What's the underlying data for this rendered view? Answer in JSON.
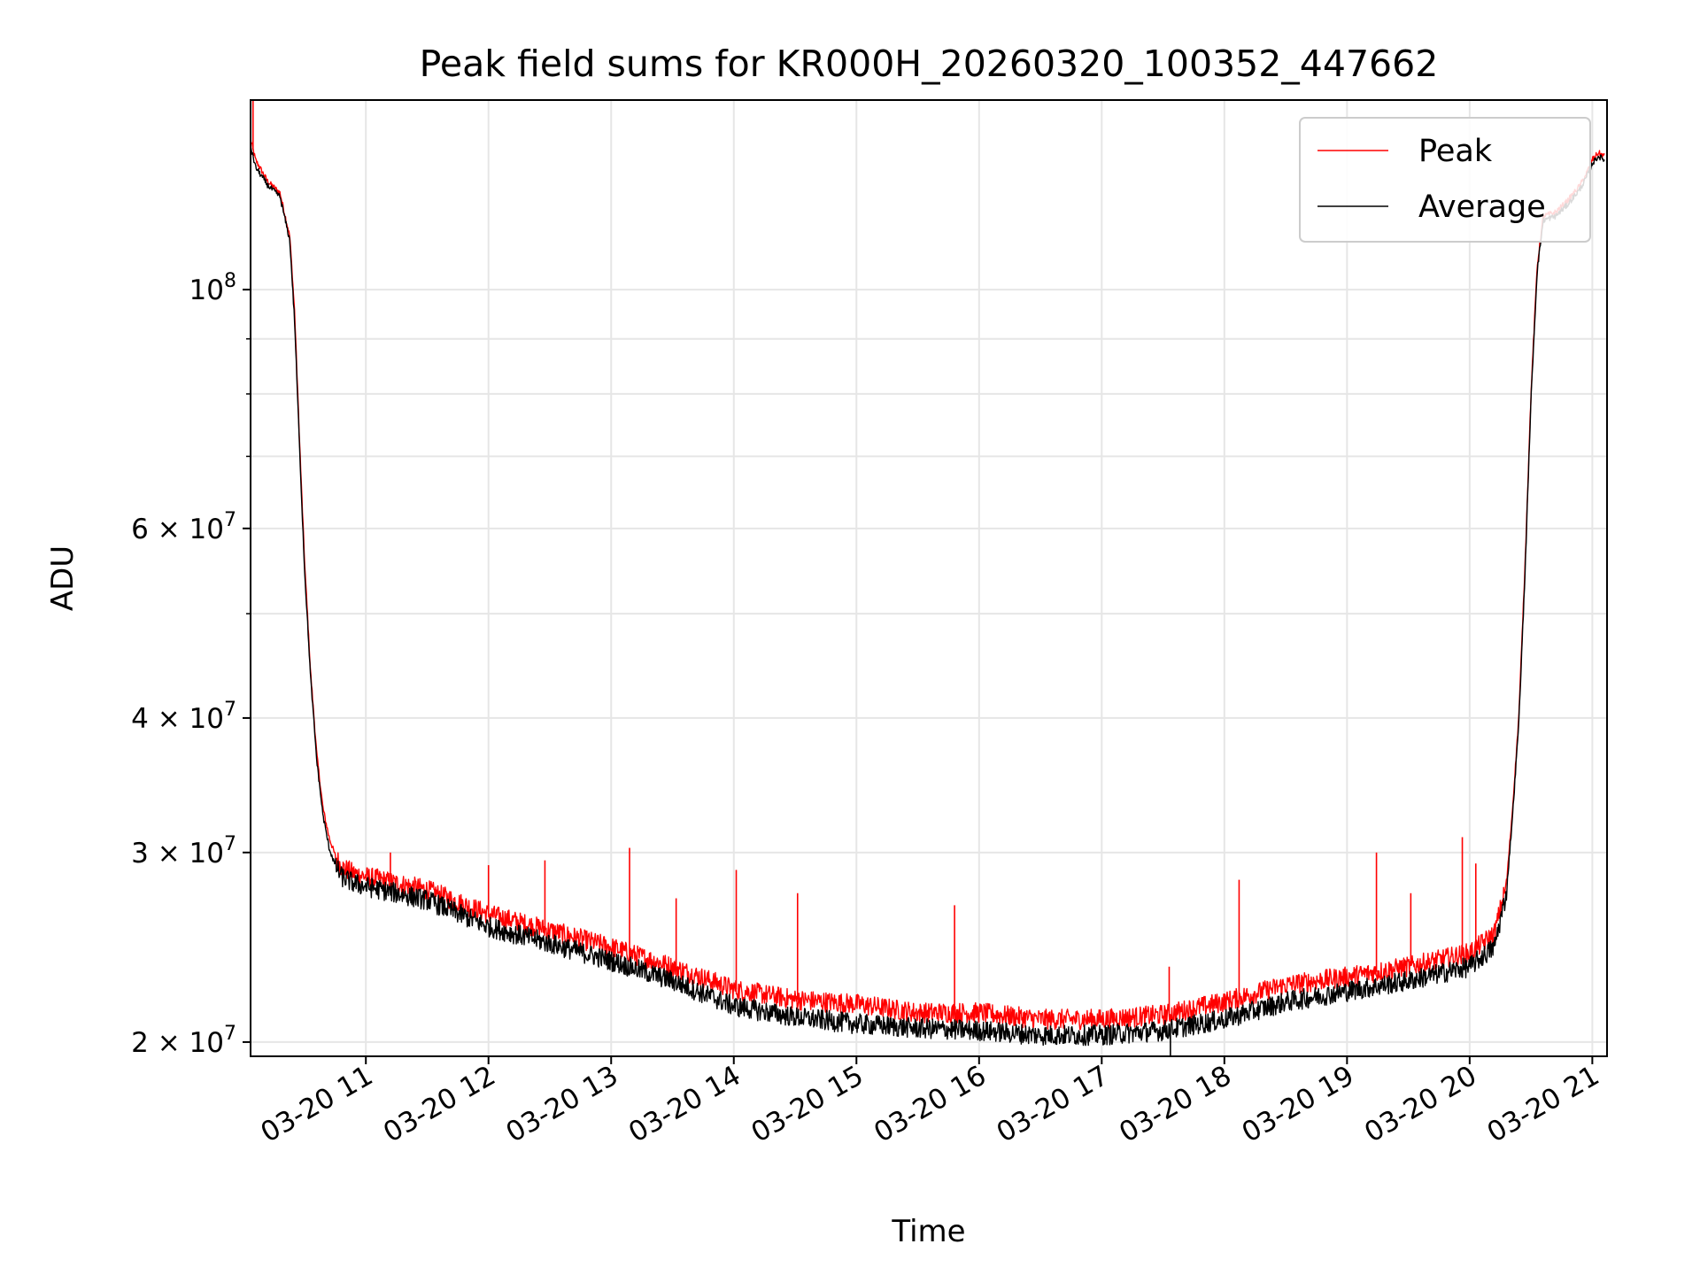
{
  "chart_data": {
    "type": "line",
    "title": "Peak field sums for KR000H_20260320_100352_447662",
    "xlabel": "Time",
    "ylabel": "ADU",
    "yscale": "log",
    "ylim": [
      19400000,
      150000000
    ],
    "xlim": [
      10.06,
      21.12
    ],
    "grid": true,
    "legend_position": "top-right",
    "x_ticks": [
      {
        "value": 11,
        "label": "03-20 11"
      },
      {
        "value": 12,
        "label": "03-20 12"
      },
      {
        "value": 13,
        "label": "03-20 13"
      },
      {
        "value": 14,
        "label": "03-20 14"
      },
      {
        "value": 15,
        "label": "03-20 15"
      },
      {
        "value": 16,
        "label": "03-20 16"
      },
      {
        "value": 17,
        "label": "03-20 17"
      },
      {
        "value": 18,
        "label": "03-20 18"
      },
      {
        "value": 19,
        "label": "03-20 19"
      },
      {
        "value": 20,
        "label": "03-20 20"
      },
      {
        "value": 21,
        "label": "03-20 21"
      }
    ],
    "y_ticks": [
      {
        "value": 20000000,
        "mantissa": "2",
        "exponent": "7"
      },
      {
        "value": 30000000,
        "mantissa": "3",
        "exponent": "7"
      },
      {
        "value": 40000000,
        "mantissa": "4",
        "exponent": "7"
      },
      {
        "value": 60000000,
        "mantissa": "6",
        "exponent": "7"
      },
      {
        "value": 100000000,
        "mantissa": "",
        "exponent": "8"
      }
    ],
    "y_minor_ticks": [
      50000000,
      70000000,
      80000000,
      90000000
    ],
    "series": [
      {
        "name": "Peak",
        "color": "#ff0000",
        "x": [
          10.06,
          10.1,
          10.2,
          10.3,
          10.38,
          10.42,
          10.46,
          10.5,
          10.55,
          10.6,
          10.65,
          10.7,
          10.75,
          10.8,
          10.9,
          11.0,
          11.5,
          12.0,
          12.5,
          13.0,
          13.5,
          14.0,
          14.5,
          15.0,
          15.5,
          16.0,
          16.5,
          17.0,
          17.5,
          18.0,
          18.5,
          19.0,
          19.5,
          20.0,
          20.2,
          20.3,
          20.35,
          20.4,
          20.45,
          20.5,
          20.55,
          20.6,
          20.7,
          20.8,
          20.9,
          20.95,
          21.0,
          21.05,
          21.1
        ],
        "values": [
          138000000,
          132000000,
          126000000,
          123000000,
          112000000,
          95000000,
          72000000,
          56000000,
          44000000,
          37000000,
          33000000,
          31000000,
          29800000,
          29100000,
          28700000,
          28500000,
          27700000,
          26300000,
          25400000,
          24500000,
          23500000,
          22400000,
          21900000,
          21700000,
          21300000,
          21300000,
          21000000,
          21000000,
          21200000,
          21800000,
          22600000,
          23000000,
          23500000,
          24200000,
          25200000,
          28000000,
          33000000,
          40000000,
          55000000,
          80000000,
          105000000,
          117000000,
          118000000,
          121000000,
          125000000,
          128000000,
          132000000,
          134000000,
          133000000
        ],
        "spikes": [
          {
            "x": 10.08,
            "value": 150000000
          },
          {
            "x": 11.2,
            "value": 30000000
          },
          {
            "x": 12.0,
            "value": 29200000
          },
          {
            "x": 12.46,
            "value": 29500000
          },
          {
            "x": 13.15,
            "value": 30300000
          },
          {
            "x": 13.53,
            "value": 27200000
          },
          {
            "x": 14.02,
            "value": 28900000
          },
          {
            "x": 14.52,
            "value": 27500000
          },
          {
            "x": 15.8,
            "value": 26800000
          },
          {
            "x": 17.55,
            "value": 23500000
          },
          {
            "x": 18.12,
            "value": 28300000
          },
          {
            "x": 19.24,
            "value": 30000000
          },
          {
            "x": 19.52,
            "value": 27500000
          },
          {
            "x": 19.94,
            "value": 31000000
          },
          {
            "x": 20.05,
            "value": 29300000
          }
        ]
      },
      {
        "name": "Average",
        "color": "#000000",
        "x": [
          10.06,
          10.1,
          10.2,
          10.3,
          10.38,
          10.42,
          10.46,
          10.5,
          10.55,
          10.6,
          10.65,
          10.7,
          10.75,
          10.8,
          10.9,
          11.0,
          11.5,
          12.0,
          12.5,
          13.0,
          13.5,
          14.0,
          14.5,
          15.0,
          15.5,
          16.0,
          16.5,
          17.0,
          17.5,
          18.0,
          18.5,
          19.0,
          19.5,
          20.0,
          20.2,
          20.3,
          20.35,
          20.4,
          20.45,
          20.5,
          20.55,
          20.6,
          20.7,
          20.8,
          20.9,
          20.95,
          21.0,
          21.05,
          21.1
        ],
        "values": [
          136000000,
          130000000,
          125000000,
          122000000,
          111000000,
          93000000,
          71000000,
          55000000,
          43500000,
          36500000,
          32500000,
          30300000,
          29200000,
          28500000,
          28100000,
          27900000,
          27100000,
          25600000,
          24700000,
          23800000,
          22800000,
          21600000,
          21100000,
          20800000,
          20600000,
          20500000,
          20300000,
          20300000,
          20500000,
          21000000,
          21800000,
          22300000,
          22800000,
          23500000,
          24500000,
          27500000,
          32500000,
          39500000,
          54000000,
          79000000,
          104000000,
          116000000,
          117000000,
          120000000,
          124000000,
          127000000,
          131000000,
          133000000,
          132000000
        ],
        "spikes": [
          {
            "x": 17.56,
            "value": 19400000
          }
        ]
      }
    ]
  }
}
